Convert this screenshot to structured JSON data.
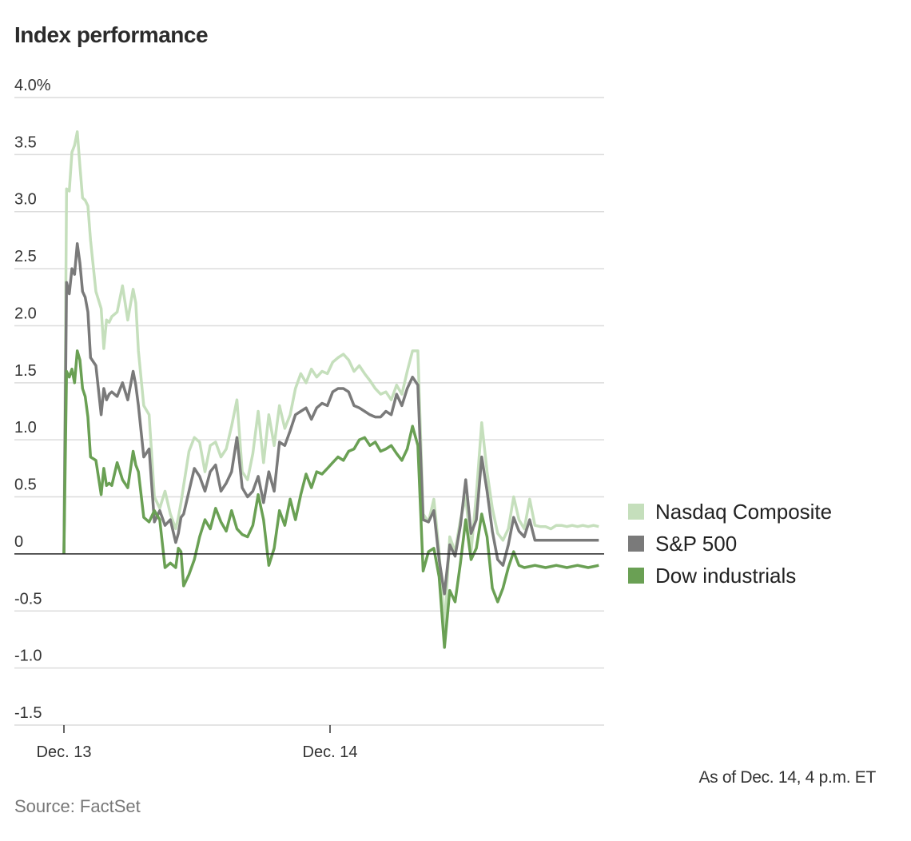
{
  "chart_data": {
    "type": "line",
    "title": "Index performance",
    "xlabel": "",
    "ylabel": "",
    "ylim": [
      -1.5,
      4.0
    ],
    "yticks": [
      {
        "value": 4.0,
        "label": "4.0%"
      },
      {
        "value": 3.5,
        "label": "3.5"
      },
      {
        "value": 3.0,
        "label": "3.0"
      },
      {
        "value": 2.5,
        "label": "2.5"
      },
      {
        "value": 2.0,
        "label": "2.0"
      },
      {
        "value": 1.5,
        "label": "1.5"
      },
      {
        "value": 1.0,
        "label": "1.0"
      },
      {
        "value": 0.5,
        "label": "0.5"
      },
      {
        "value": 0,
        "label": "0"
      },
      {
        "value": -0.5,
        "label": "-0.5"
      },
      {
        "value": -1.0,
        "label": "-1.0"
      },
      {
        "value": -1.5,
        "label": "-1.5"
      }
    ],
    "xlim": [
      0,
      2.02
    ],
    "xticks": [
      {
        "value": 0,
        "label": "Dec. 13"
      },
      {
        "value": 1,
        "label": "Dec. 14"
      }
    ],
    "series": [
      {
        "name": "Nasdaq Composite",
        "color": "#c5dfbc",
        "x": [
          0,
          0.01,
          0.02,
          0.03,
          0.04,
          0.05,
          0.06,
          0.07,
          0.08,
          0.09,
          0.1,
          0.12,
          0.14,
          0.15,
          0.16,
          0.17,
          0.18,
          0.2,
          0.22,
          0.24,
          0.26,
          0.27,
          0.28,
          0.3,
          0.32,
          0.34,
          0.36,
          0.38,
          0.4,
          0.42,
          0.43,
          0.44,
          0.45,
          0.47,
          0.49,
          0.51,
          0.53,
          0.55,
          0.57,
          0.59,
          0.61,
          0.63,
          0.65,
          0.67,
          0.69,
          0.71,
          0.73,
          0.75,
          0.77,
          0.79,
          0.81,
          0.83,
          0.85,
          0.87,
          0.89,
          0.91,
          0.93,
          0.95,
          0.97,
          0.99,
          1.01,
          1.03,
          1.05,
          1.07,
          1.09,
          1.11,
          1.13,
          1.15,
          1.17,
          1.19,
          1.21,
          1.23,
          1.25,
          1.27,
          1.29,
          1.31,
          1.33,
          1.35,
          1.37,
          1.39,
          1.41,
          1.43,
          1.45,
          1.47,
          1.49,
          1.51,
          1.53,
          1.55,
          1.57,
          1.59,
          1.61,
          1.63,
          1.65,
          1.67,
          1.69,
          1.71,
          1.73,
          1.75,
          1.77,
          1.79,
          1.81,
          1.83,
          1.85,
          1.87,
          1.89,
          1.91,
          1.93,
          1.95,
          1.97,
          1.99,
          2.01
        ],
        "values": [
          0.0,
          3.2,
          3.18,
          3.52,
          3.58,
          3.7,
          3.4,
          3.12,
          3.1,
          3.05,
          2.75,
          2.3,
          2.15,
          1.8,
          2.05,
          2.03,
          2.08,
          2.12,
          2.35,
          2.05,
          2.32,
          2.2,
          1.78,
          1.3,
          1.22,
          0.5,
          0.4,
          0.55,
          0.35,
          0.22,
          0.32,
          0.45,
          0.6,
          0.9,
          1.02,
          0.98,
          0.72,
          0.95,
          0.98,
          0.85,
          0.92,
          1.12,
          1.35,
          0.72,
          0.65,
          0.88,
          1.25,
          0.8,
          1.22,
          0.95,
          1.3,
          1.1,
          1.22,
          1.45,
          1.58,
          1.5,
          1.62,
          1.55,
          1.6,
          1.58,
          1.68,
          1.72,
          1.75,
          1.7,
          1.6,
          1.65,
          1.58,
          1.52,
          1.45,
          1.4,
          1.42,
          1.35,
          1.48,
          1.4,
          1.6,
          1.78,
          1.78,
          0.35,
          0.28,
          0.48,
          0.02,
          -0.65,
          0.15,
          0.02,
          0.3,
          0.5,
          0.02,
          0.52,
          1.15,
          0.72,
          0.4,
          0.18,
          0.12,
          0.22,
          0.5,
          0.3,
          0.22,
          0.48,
          0.25,
          0.24,
          0.24,
          0.22,
          0.25,
          0.25,
          0.24,
          0.25,
          0.24,
          0.25,
          0.24,
          0.25,
          0.24
        ]
      },
      {
        "name": "S&P 500",
        "color": "#7a7a7a",
        "x": [
          0,
          0.01,
          0.02,
          0.03,
          0.04,
          0.05,
          0.06,
          0.07,
          0.08,
          0.09,
          0.1,
          0.12,
          0.14,
          0.15,
          0.16,
          0.17,
          0.18,
          0.2,
          0.22,
          0.24,
          0.26,
          0.27,
          0.28,
          0.3,
          0.32,
          0.34,
          0.36,
          0.38,
          0.4,
          0.42,
          0.43,
          0.44,
          0.45,
          0.47,
          0.49,
          0.51,
          0.53,
          0.55,
          0.57,
          0.59,
          0.61,
          0.63,
          0.65,
          0.67,
          0.69,
          0.71,
          0.73,
          0.75,
          0.77,
          0.79,
          0.81,
          0.83,
          0.85,
          0.87,
          0.89,
          0.91,
          0.93,
          0.95,
          0.97,
          0.99,
          1.01,
          1.03,
          1.05,
          1.07,
          1.09,
          1.11,
          1.13,
          1.15,
          1.17,
          1.19,
          1.21,
          1.23,
          1.25,
          1.27,
          1.29,
          1.31,
          1.33,
          1.35,
          1.37,
          1.39,
          1.41,
          1.43,
          1.45,
          1.47,
          1.49,
          1.51,
          1.53,
          1.55,
          1.57,
          1.59,
          1.61,
          1.63,
          1.65,
          1.67,
          1.69,
          1.71,
          1.73,
          1.75,
          1.77,
          1.79,
          1.81,
          1.83,
          1.85,
          1.87,
          1.89,
          1.91,
          1.93,
          1.95,
          1.97,
          1.99,
          2.01
        ],
        "values": [
          0.0,
          2.38,
          2.28,
          2.5,
          2.45,
          2.72,
          2.55,
          2.3,
          2.25,
          2.12,
          1.72,
          1.65,
          1.22,
          1.45,
          1.35,
          1.4,
          1.42,
          1.38,
          1.5,
          1.35,
          1.6,
          1.48,
          1.3,
          0.85,
          0.92,
          0.28,
          0.38,
          0.25,
          0.3,
          0.1,
          0.18,
          0.32,
          0.35,
          0.55,
          0.75,
          0.68,
          0.55,
          0.72,
          0.78,
          0.55,
          0.62,
          0.72,
          1.02,
          0.58,
          0.5,
          0.55,
          0.68,
          0.45,
          0.72,
          0.55,
          0.98,
          0.95,
          1.08,
          1.22,
          1.25,
          1.28,
          1.18,
          1.28,
          1.32,
          1.3,
          1.42,
          1.45,
          1.45,
          1.42,
          1.3,
          1.28,
          1.25,
          1.22,
          1.2,
          1.2,
          1.25,
          1.22,
          1.4,
          1.3,
          1.45,
          1.55,
          1.48,
          0.3,
          0.28,
          0.38,
          -0.05,
          -0.35,
          0.08,
          -0.02,
          0.25,
          0.65,
          0.18,
          0.3,
          0.85,
          0.55,
          0.2,
          -0.05,
          -0.1,
          0.08,
          0.32,
          0.2,
          0.15,
          0.3,
          0.12,
          0.12,
          0.12,
          0.12,
          0.12,
          0.12,
          0.12,
          0.12,
          0.12,
          0.12,
          0.12,
          0.12,
          0.12
        ]
      },
      {
        "name": "Dow industrials",
        "color": "#6aa054",
        "x": [
          0,
          0.01,
          0.02,
          0.03,
          0.04,
          0.05,
          0.06,
          0.07,
          0.08,
          0.09,
          0.1,
          0.12,
          0.14,
          0.15,
          0.16,
          0.17,
          0.18,
          0.2,
          0.22,
          0.24,
          0.26,
          0.27,
          0.28,
          0.3,
          0.32,
          0.34,
          0.36,
          0.38,
          0.4,
          0.42,
          0.43,
          0.44,
          0.45,
          0.47,
          0.49,
          0.51,
          0.53,
          0.55,
          0.57,
          0.59,
          0.61,
          0.63,
          0.65,
          0.67,
          0.69,
          0.71,
          0.73,
          0.75,
          0.77,
          0.79,
          0.81,
          0.83,
          0.85,
          0.87,
          0.89,
          0.91,
          0.93,
          0.95,
          0.97,
          0.99,
          1.01,
          1.03,
          1.05,
          1.07,
          1.09,
          1.11,
          1.13,
          1.15,
          1.17,
          1.19,
          1.21,
          1.23,
          1.25,
          1.27,
          1.29,
          1.31,
          1.33,
          1.35,
          1.37,
          1.39,
          1.41,
          1.43,
          1.45,
          1.47,
          1.49,
          1.51,
          1.53,
          1.55,
          1.57,
          1.59,
          1.61,
          1.63,
          1.65,
          1.67,
          1.69,
          1.71,
          1.73,
          1.75,
          1.77,
          1.79,
          1.81,
          1.83,
          1.85,
          1.87,
          1.89,
          1.91,
          1.93,
          1.95,
          1.97,
          1.99,
          2.01
        ],
        "values": [
          0.0,
          1.6,
          1.55,
          1.62,
          1.5,
          1.78,
          1.7,
          1.45,
          1.38,
          1.2,
          0.85,
          0.82,
          0.52,
          0.75,
          0.6,
          0.62,
          0.6,
          0.8,
          0.65,
          0.58,
          0.9,
          0.78,
          0.72,
          0.32,
          0.28,
          0.38,
          0.3,
          -0.12,
          -0.08,
          -0.12,
          0.05,
          0.02,
          -0.28,
          -0.18,
          -0.05,
          0.15,
          0.3,
          0.22,
          0.4,
          0.28,
          0.2,
          0.38,
          0.22,
          0.17,
          0.15,
          0.25,
          0.52,
          0.3,
          -0.1,
          0.05,
          0.38,
          0.25,
          0.48,
          0.3,
          0.52,
          0.7,
          0.58,
          0.72,
          0.7,
          0.75,
          0.8,
          0.85,
          0.82,
          0.9,
          0.92,
          1.0,
          1.02,
          0.95,
          0.98,
          0.9,
          0.92,
          0.95,
          0.88,
          0.82,
          0.92,
          1.12,
          0.95,
          -0.15,
          0.02,
          0.05,
          -0.2,
          -0.82,
          -0.32,
          -0.42,
          -0.08,
          0.3,
          -0.05,
          0.05,
          0.35,
          0.15,
          -0.3,
          -0.42,
          -0.3,
          -0.12,
          0.02,
          -0.1,
          -0.12,
          -0.11,
          -0.1,
          -0.11,
          -0.12,
          -0.11,
          -0.1,
          -0.11,
          -0.12,
          -0.11,
          -0.1,
          -0.11,
          -0.12,
          -0.11,
          -0.1
        ]
      }
    ],
    "legend_position": "right",
    "note": "As of Dec. 14, 4 p.m. ET",
    "source": "Source: FactSet"
  }
}
